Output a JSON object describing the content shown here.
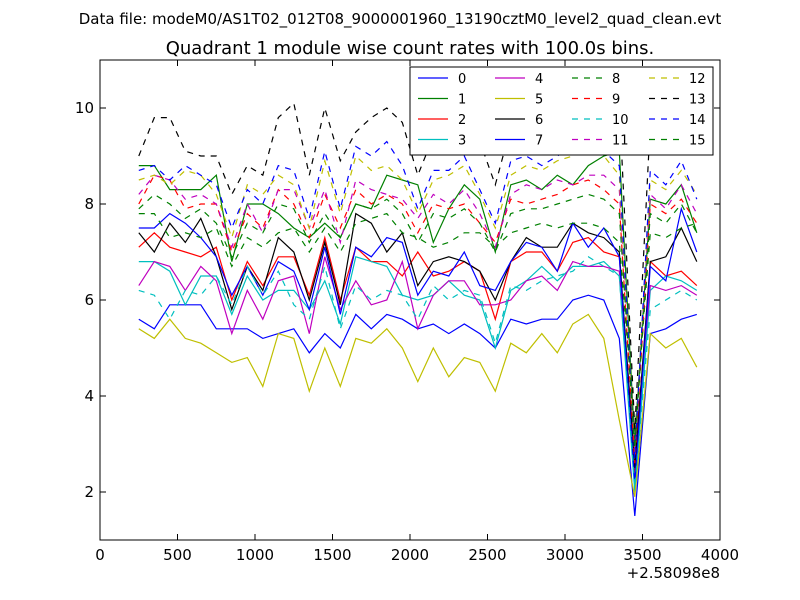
{
  "chart_data": {
    "type": "line",
    "suptitle": "Data file: modeM0/AS1T02_012T08_9000001960_13190cztM0_level2_quad_clean.evt",
    "title": "Quadrant 1 module wise count rates with 100.0s bins.",
    "xlabel": "",
    "ylabel": "",
    "xlim": [
      0,
      4000
    ],
    "ylim": [
      1,
      11
    ],
    "x_offset_label": "+2.58098e8",
    "x_ticks": [
      0,
      500,
      1000,
      1500,
      2000,
      2500,
      3000,
      3500,
      4000
    ],
    "y_ticks": [
      2,
      4,
      6,
      8,
      10
    ],
    "grid": false,
    "legend": {
      "placement": "top-right",
      "columns": 4
    },
    "x": [
      250,
      350,
      450,
      550,
      650,
      750,
      850,
      950,
      1050,
      1150,
      1250,
      1350,
      1450,
      1550,
      1650,
      1750,
      1850,
      1950,
      2050,
      2150,
      2250,
      2350,
      2450,
      2550,
      2650,
      2750,
      2850,
      2950,
      3050,
      3150,
      3250,
      3350,
      3450,
      3550,
      3650,
      3750,
      3850
    ],
    "series": [
      {
        "name": "0",
        "color": "#0000ff",
        "dash": "solid",
        "values": [
          5.6,
          5.4,
          5.9,
          5.9,
          5.9,
          5.4,
          5.4,
          5.4,
          5.2,
          5.3,
          5.4,
          4.9,
          5.3,
          5.0,
          5.7,
          5.4,
          5.7,
          5.6,
          5.4,
          5.5,
          5.3,
          5.5,
          5.3,
          5.0,
          5.6,
          5.5,
          5.6,
          5.6,
          6.0,
          6.1,
          6.0,
          5.2,
          1.5,
          5.3,
          5.4,
          5.6,
          5.7
        ]
      },
      {
        "name": "1",
        "color": "#008000",
        "dash": "solid",
        "values": [
          8.8,
          8.8,
          8.3,
          8.3,
          8.3,
          8.6,
          6.8,
          8.0,
          8.0,
          7.8,
          7.5,
          7.3,
          7.6,
          7.3,
          8.0,
          7.9,
          8.6,
          8.5,
          8.4,
          7.2,
          7.9,
          8.4,
          8.1,
          7.0,
          8.4,
          8.5,
          8.3,
          8.6,
          8.4,
          8.8,
          9.0,
          9.1,
          3.0,
          8.1,
          8.0,
          8.4,
          7.4
        ]
      },
      {
        "name": "2",
        "color": "#ff0000",
        "dash": "solid",
        "values": [
          7.1,
          7.4,
          7.1,
          7.0,
          6.9,
          7.1,
          6.0,
          6.8,
          6.3,
          6.9,
          6.9,
          6.1,
          7.3,
          6.0,
          7.1,
          6.8,
          6.8,
          6.5,
          7.0,
          6.5,
          6.6,
          6.8,
          6.6,
          5.6,
          6.8,
          7.0,
          7.0,
          6.6,
          7.2,
          7.3,
          7.0,
          6.9,
          2.4,
          6.8,
          6.5,
          6.6,
          6.3
        ]
      },
      {
        "name": "3",
        "color": "#00bfbf",
        "dash": "solid",
        "values": [
          6.8,
          6.8,
          6.6,
          5.9,
          6.5,
          6.5,
          5.7,
          6.5,
          6.0,
          6.2,
          6.2,
          5.8,
          6.4,
          5.5,
          6.9,
          6.8,
          6.7,
          6.1,
          6.0,
          6.1,
          6.4,
          6.1,
          6.0,
          5.0,
          6.2,
          6.4,
          6.7,
          6.4,
          6.7,
          6.7,
          6.8,
          6.5,
          2.0,
          6.2,
          6.5,
          6.4,
          6.2
        ]
      },
      {
        "name": "4",
        "color": "#bf00bf",
        "dash": "solid",
        "values": [
          6.3,
          6.8,
          6.7,
          6.2,
          6.7,
          6.4,
          5.3,
          6.2,
          5.6,
          6.4,
          6.5,
          5.3,
          6.9,
          5.8,
          6.4,
          5.9,
          6.0,
          6.8,
          5.4,
          6.1,
          6.4,
          6.4,
          5.9,
          5.9,
          6.0,
          6.4,
          6.5,
          6.2,
          6.8,
          6.7,
          6.7,
          6.6,
          2.8,
          6.3,
          6.2,
          6.3,
          6.1
        ]
      },
      {
        "name": "5",
        "color": "#bfbf00",
        "dash": "solid",
        "values": [
          5.4,
          5.2,
          5.6,
          5.2,
          5.1,
          4.9,
          4.7,
          4.8,
          4.2,
          5.3,
          5.2,
          4.1,
          5.0,
          4.2,
          5.2,
          5.1,
          5.4,
          5.0,
          4.3,
          5.0,
          4.4,
          4.8,
          4.7,
          4.1,
          5.1,
          4.9,
          5.3,
          4.9,
          5.5,
          5.7,
          5.2,
          3.5,
          1.9,
          5.3,
          5.0,
          5.2,
          4.6
        ]
      },
      {
        "name": "6",
        "color": "#000000",
        "dash": "solid",
        "values": [
          7.4,
          7.0,
          7.6,
          7.2,
          7.7,
          6.9,
          5.8,
          6.7,
          6.2,
          7.3,
          7.0,
          6.0,
          7.2,
          5.9,
          7.8,
          7.6,
          7.0,
          7.4,
          6.3,
          6.8,
          6.9,
          6.8,
          6.6,
          6.0,
          6.8,
          7.3,
          7.1,
          7.1,
          7.6,
          7.4,
          7.3,
          7.0,
          2.5,
          6.8,
          6.9,
          7.5,
          6.8
        ]
      },
      {
        "name": "7",
        "color": "#0000ff",
        "dash": "solid",
        "values": [
          7.5,
          7.5,
          7.8,
          7.6,
          7.3,
          6.9,
          6.1,
          6.7,
          6.1,
          6.8,
          6.6,
          5.8,
          7.1,
          5.7,
          7.1,
          6.9,
          7.3,
          7.2,
          6.1,
          6.6,
          6.5,
          7.0,
          6.3,
          6.2,
          6.8,
          7.2,
          7.1,
          6.6,
          7.6,
          7.1,
          7.5,
          6.9,
          2.2,
          6.7,
          6.4,
          7.9,
          7.0
        ]
      },
      {
        "name": "8",
        "color": "#008000",
        "dash": "dashed",
        "values": [
          7.8,
          7.8,
          7.3,
          7.4,
          7.3,
          7.5,
          6.7,
          7.3,
          7.1,
          7.4,
          7.5,
          7.0,
          7.5,
          7.0,
          7.6,
          7.7,
          7.8,
          7.4,
          7.3,
          7.1,
          7.2,
          7.4,
          7.4,
          7.1,
          7.4,
          7.5,
          7.6,
          7.5,
          7.6,
          7.6,
          7.5,
          7.2,
          3.2,
          7.4,
          7.3,
          7.5,
          7.6
        ]
      },
      {
        "name": "9",
        "color": "#ff0000",
        "dash": "dashed",
        "values": [
          8.0,
          8.6,
          8.5,
          7.9,
          8.0,
          8.0,
          7.0,
          7.8,
          7.5,
          8.3,
          8.0,
          7.3,
          8.2,
          7.5,
          8.3,
          8.0,
          8.2,
          8.0,
          7.4,
          8.0,
          7.9,
          8.0,
          7.6,
          7.2,
          8.1,
          8.0,
          8.1,
          8.2,
          8.4,
          8.5,
          8.3,
          8.0,
          2.6,
          8.0,
          7.8,
          8.1,
          7.6
        ]
      },
      {
        "name": "10",
        "color": "#00bfbf",
        "dash": "dashed",
        "values": [
          6.2,
          6.1,
          5.6,
          6.2,
          6.1,
          6.5,
          5.9,
          6.7,
          6.1,
          6.6,
          5.9,
          5.6,
          6.7,
          5.4,
          6.3,
          6.0,
          6.2,
          6.1,
          5.6,
          6.3,
          6.0,
          6.2,
          6.1,
          5.1,
          6.3,
          6.2,
          6.4,
          6.5,
          6.6,
          6.9,
          6.7,
          6.5,
          2.1,
          5.8,
          6.0,
          6.2,
          6.0
        ]
      },
      {
        "name": "11",
        "color": "#bf00bf",
        "dash": "dashed",
        "values": [
          8.2,
          8.6,
          8.5,
          8.1,
          8.2,
          8.0,
          7.1,
          8.0,
          7.4,
          8.3,
          8.3,
          7.5,
          8.3,
          7.2,
          8.5,
          8.3,
          8.2,
          8.1,
          7.7,
          8.2,
          8.0,
          8.3,
          7.8,
          7.1,
          8.2,
          8.4,
          8.3,
          8.5,
          8.4,
          8.6,
          8.6,
          8.3,
          2.9,
          8.2,
          7.9,
          8.4,
          7.8
        ]
      },
      {
        "name": "12",
        "color": "#bfbf00",
        "dash": "dashed",
        "values": [
          8.5,
          8.6,
          8.4,
          8.7,
          8.6,
          8.2,
          7.3,
          8.4,
          8.2,
          8.6,
          8.4,
          7.5,
          8.9,
          7.8,
          9.0,
          8.7,
          8.8,
          8.5,
          7.8,
          8.5,
          8.6,
          8.8,
          8.2,
          7.5,
          8.6,
          8.8,
          8.7,
          8.9,
          9.0,
          9.2,
          9.0,
          8.6,
          2.8,
          8.5,
          8.3,
          8.7,
          8.2
        ]
      },
      {
        "name": "13",
        "color": "#000000",
        "dash": "dashed",
        "values": [
          9.0,
          9.8,
          9.8,
          9.1,
          9.0,
          9.0,
          8.2,
          8.8,
          8.6,
          9.8,
          10.1,
          8.6,
          10.0,
          8.9,
          9.5,
          9.8,
          10.0,
          9.7,
          8.6,
          9.4,
          9.7,
          9.9,
          9.3,
          8.4,
          9.6,
          9.8,
          9.8,
          10.0,
          9.9,
          10.2,
          10.3,
          10.1,
          3.3,
          9.7,
          9.5,
          10.2,
          9.3
        ]
      },
      {
        "name": "14",
        "color": "#0000ff",
        "dash": "dashed",
        "values": [
          8.7,
          8.8,
          8.5,
          8.8,
          8.6,
          8.4,
          7.5,
          8.3,
          8.0,
          8.8,
          8.7,
          7.7,
          9.1,
          7.9,
          9.2,
          9.0,
          9.3,
          8.8,
          7.9,
          8.7,
          8.7,
          9.0,
          8.3,
          7.6,
          8.9,
          9.0,
          8.8,
          9.0,
          9.2,
          9.3,
          9.1,
          8.8,
          2.7,
          8.7,
          8.4,
          8.9,
          8.1
        ]
      },
      {
        "name": "15",
        "color": "#008000",
        "dash": "dashed",
        "values": [
          7.9,
          8.2,
          8.0,
          7.7,
          7.9,
          7.6,
          6.9,
          7.6,
          7.4,
          8.0,
          7.9,
          7.2,
          7.8,
          7.3,
          8.0,
          7.9,
          8.1,
          7.8,
          7.2,
          7.8,
          7.7,
          7.9,
          7.6,
          7.0,
          7.8,
          7.9,
          7.9,
          8.0,
          8.1,
          8.2,
          8.1,
          7.8,
          2.9,
          7.8,
          7.6,
          8.0,
          7.4
        ]
      }
    ]
  }
}
